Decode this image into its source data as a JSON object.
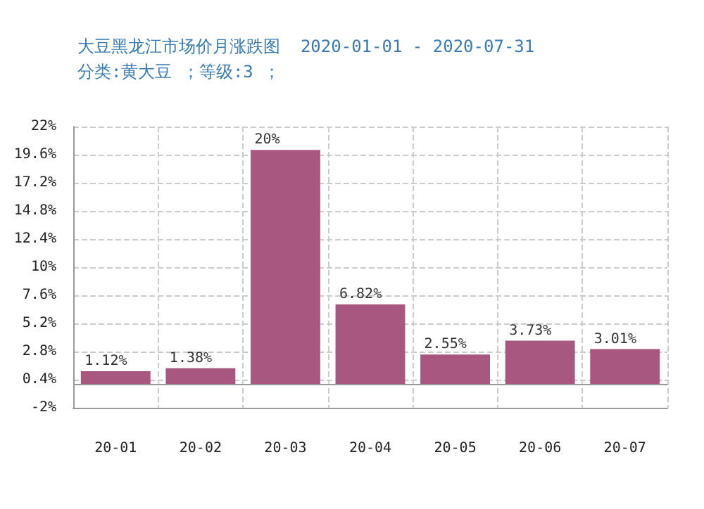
{
  "chart_data": {
    "type": "bar",
    "title": "大豆黑龙江市场价月涨跌图  2020-01-01 - 2020-07-31",
    "subtitle": "分类:黄大豆 ；等级:3 ；",
    "categories": [
      "20-01",
      "20-02",
      "20-03",
      "20-04",
      "20-05",
      "20-06",
      "20-07"
    ],
    "values": [
      1.12,
      1.38,
      20,
      6.82,
      2.55,
      3.73,
      3.01
    ],
    "value_labels": [
      "1.12%",
      "1.38%",
      "20%",
      "6.82%",
      "2.55%",
      "3.73%",
      "3.01%"
    ],
    "color": "#a85880",
    "ylim": [
      -2,
      22
    ],
    "yticks": [
      {
        "value": -2,
        "label": "-2%"
      },
      {
        "value": 0.4,
        "label": "0.4%"
      },
      {
        "value": 2.8,
        "label": "2.8%"
      },
      {
        "value": 5.2,
        "label": "5.2%"
      },
      {
        "value": 7.6,
        "label": "7.6%"
      },
      {
        "value": 10,
        "label": "10%"
      },
      {
        "value": 12.4,
        "label": "12.4%"
      },
      {
        "value": 14.8,
        "label": "14.8%"
      },
      {
        "value": 17.2,
        "label": "17.2%"
      },
      {
        "value": 19.6,
        "label": "19.6%"
      },
      {
        "value": 22,
        "label": "22%"
      }
    ],
    "grid": true
  }
}
